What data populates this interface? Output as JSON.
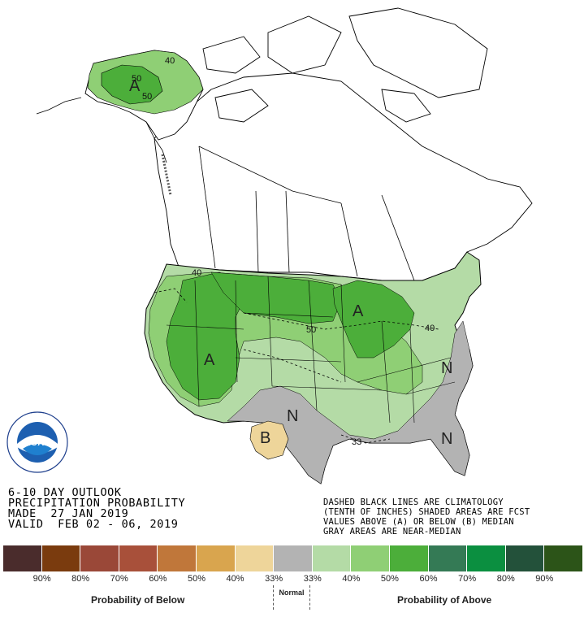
{
  "title": {
    "line1": "6-10 DAY OUTLOOK",
    "line2": "PRECIPITATION PROBABILITY",
    "line3": "MADE  27 JAN 2019",
    "line4": "VALID  FEB 02 - 06, 2019"
  },
  "note": {
    "line1": "DASHED BLACK LINES ARE CLIMATOLOGY",
    "line2": "(TENTH OF INCHES) SHADED AREAS ARE FCST",
    "line3": "VALUES ABOVE (A) OR BELOW (B) MEDIAN",
    "line4": "GRAY AREAS ARE NEAR-MEDIAN"
  },
  "map_labels": {
    "alaska_a": "A",
    "west_a": "A",
    "greatlakes_a": "A",
    "texas_b": "B",
    "south_n": "N",
    "east_n": "N",
    "florida_n": "N"
  },
  "contour_labels": {
    "ak_50a": "50",
    "ak_50b": "50",
    "ak_40": "40",
    "nw_40": "40",
    "plains_50": "50",
    "ne_40": "40",
    "gulf_33": "33"
  },
  "legend": {
    "colors": [
      "#4a2c2c",
      "#7a3b0e",
      "#9a4838",
      "#a8503a",
      "#c0773a",
      "#d9a54e",
      "#eed59a",
      "#b3b3b3",
      "#b4dba6",
      "#8fcf75",
      "#4cae3a",
      "#347a55",
      "#0b8f40",
      "#23513a",
      "#2c5418"
    ],
    "ticks": [
      "90%",
      "80%",
      "70%",
      "60%",
      "50%",
      "40%",
      "33%",
      "33%",
      "40%",
      "50%",
      "60%",
      "70%",
      "80%",
      "90%"
    ],
    "below_label": "Probability of Below",
    "normal_label": "Normal",
    "above_label": "Probability of Above"
  },
  "logo": {
    "text": "NOAA",
    "ring_text": "NATIONAL OCEANIC AND ATMOSPHERIC ADMINISTRATION · U.S. DEPARTMENT OF COMMERCE"
  }
}
